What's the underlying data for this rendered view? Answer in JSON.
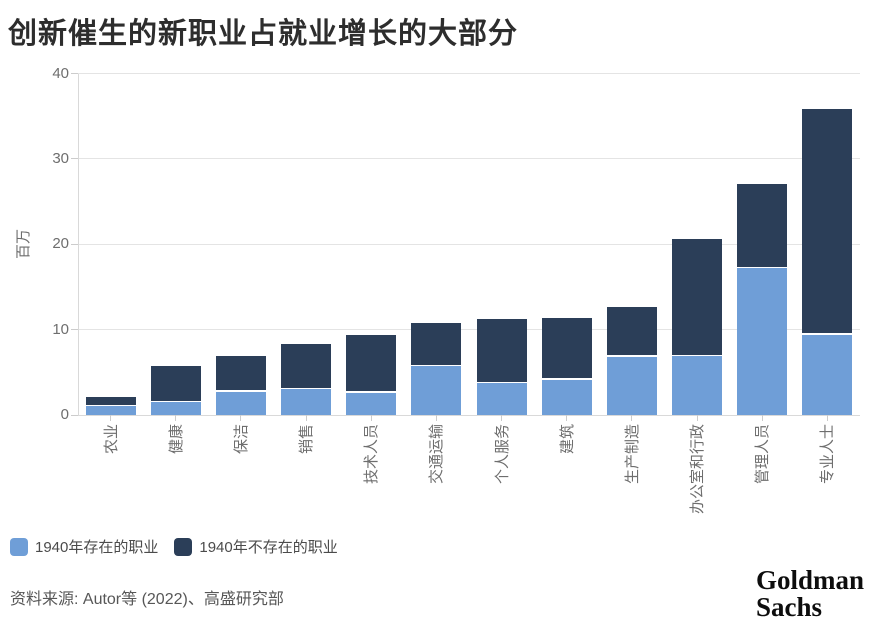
{
  "chart_data": {
    "type": "bar",
    "stacked": true,
    "title": "创新催生的新职业占就业增长的大部分",
    "ylabel": "百万",
    "ylim": [
      0,
      40
    ],
    "yticks": [
      0,
      10,
      20,
      30,
      40
    ],
    "grid": true,
    "legend_position": "bottom-left",
    "categories": [
      "农业",
      "健康",
      "保洁",
      "销售",
      "技术人员",
      "交通运输",
      "个人服务",
      "建筑",
      "生产制造",
      "办公室和行政",
      "管理人员",
      "专业人士"
    ],
    "series": [
      {
        "name": "1940年存在的职业",
        "color": "#6f9ed7",
        "values": [
          1.0,
          1.5,
          2.7,
          3.0,
          2.6,
          5.7,
          3.7,
          4.1,
          6.8,
          6.9,
          17.2,
          9.4
        ]
      },
      {
        "name": "1940年不存在的职业",
        "color": "#2b3e58",
        "values": [
          1.1,
          4.2,
          4.2,
          5.3,
          6.8,
          5.1,
          7.5,
          7.3,
          5.9,
          13.7,
          9.8,
          26.5
        ]
      }
    ],
    "totals": [
      2.1,
      5.7,
      6.9,
      8.3,
      9.4,
      10.8,
      11.2,
      11.4,
      12.7,
      20.6,
      27.0,
      35.9
    ]
  },
  "source_note": "资料来源: Autor等 (2022)、高盛研究部",
  "logo": {
    "line1": "Goldman",
    "line2": "Sachs"
  },
  "colors": {
    "existing_1940": "#6f9ed7",
    "new_occupation": "#2b3e58",
    "gridline": "#e4e4e4",
    "axis": "#d9d9d9",
    "text_muted": "#6e6e6e"
  }
}
